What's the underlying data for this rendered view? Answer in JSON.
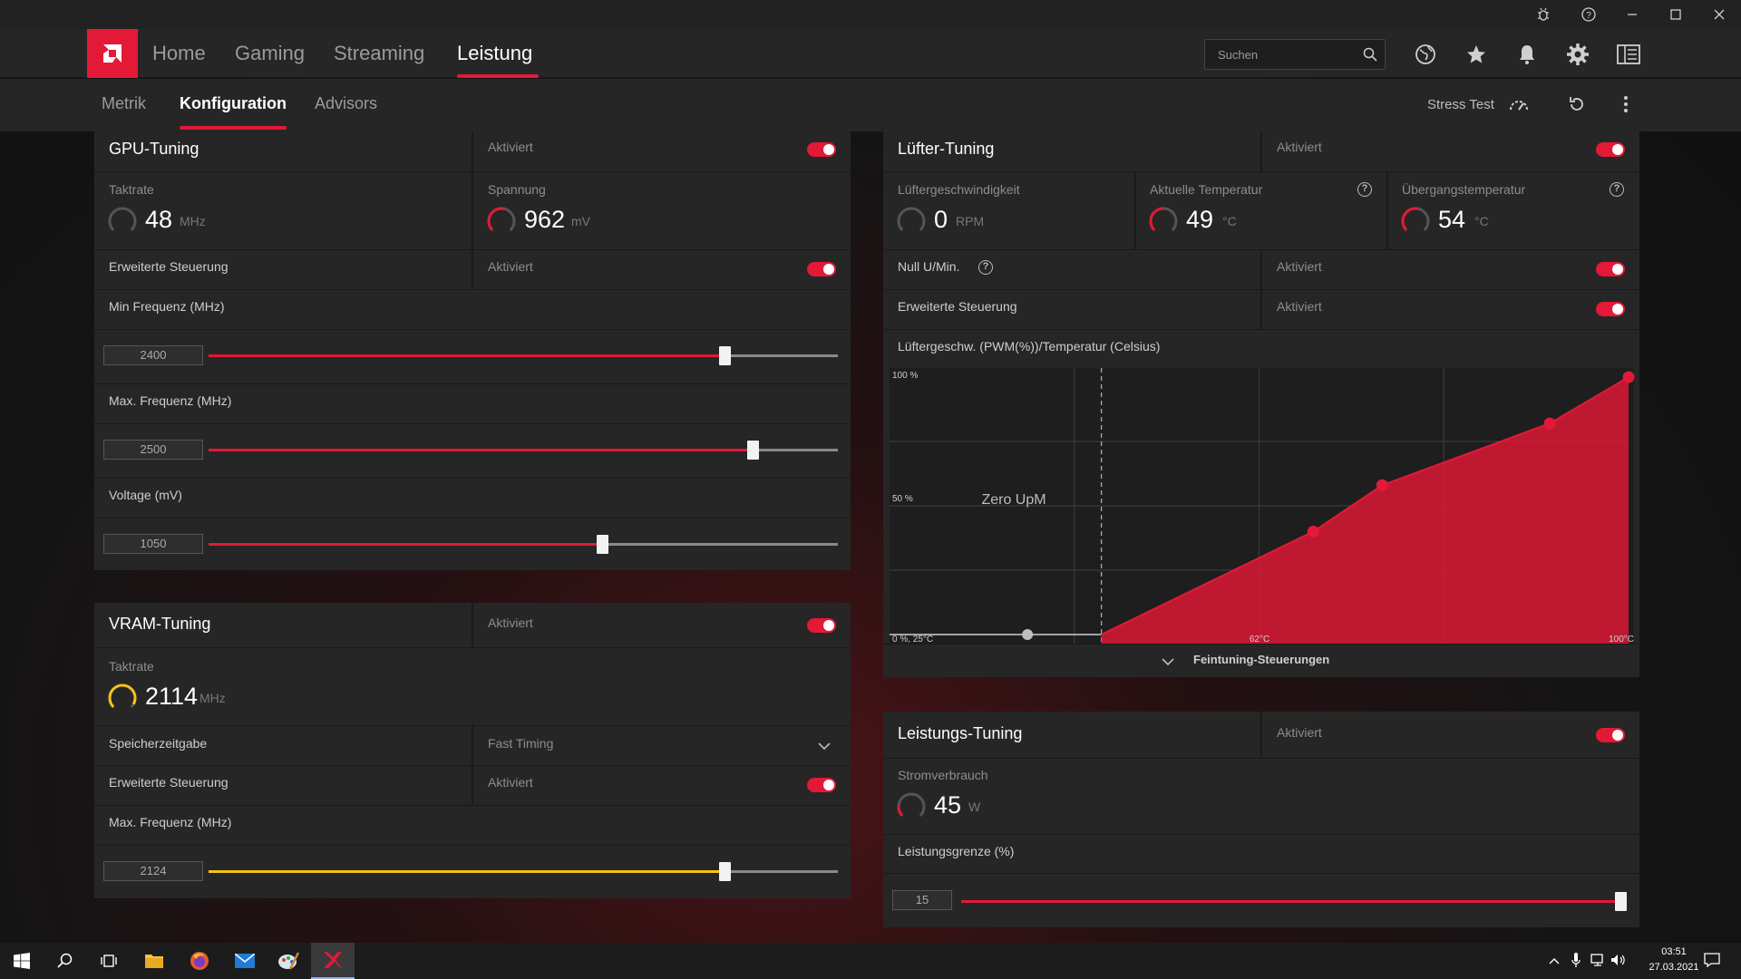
{
  "colors": {
    "accent": "#e31937",
    "vram_accent": "#f5c21b",
    "panel": "#262626"
  },
  "window": {
    "icons": [
      "bug-icon",
      "help-icon",
      "minimize-icon",
      "maximize-icon",
      "close-icon"
    ]
  },
  "nav": {
    "tabs": [
      "Home",
      "Gaming",
      "Streaming",
      "Leistung"
    ],
    "active": "Leistung",
    "search_placeholder": "Suchen",
    "icons": [
      "globe-icon",
      "star-icon",
      "bell-icon",
      "gear-icon",
      "layout-icon"
    ]
  },
  "subnav": {
    "tabs": [
      "Metrik",
      "Konfiguration",
      "Advisors"
    ],
    "active": "Konfiguration",
    "stress_test": "Stress Test"
  },
  "gpu": {
    "title": "GPU-Tuning",
    "status": "Aktiviert",
    "clock": {
      "label": "Taktrate",
      "value": "48",
      "unit": "MHz"
    },
    "voltage": {
      "label": "Spannung",
      "value": "962",
      "unit": "mV"
    },
    "advanced": {
      "label": "Erweiterte Steuerung",
      "status": "Aktiviert"
    },
    "min_freq": {
      "label": "Min Frequenz (MHz)",
      "value": "2400",
      "fraction": 0.82
    },
    "max_freq": {
      "label": "Max. Frequenz (MHz)",
      "value": "2500",
      "fraction": 0.865
    },
    "volt": {
      "label": "Voltage (mV)",
      "value": "1050",
      "fraction": 0.625
    }
  },
  "vram": {
    "title": "VRAM-Tuning",
    "status": "Aktiviert",
    "clock": {
      "label": "Taktrate",
      "value": "2114",
      "unit": "MHz"
    },
    "timing": {
      "label": "Speicherzeitgabe",
      "value": "Fast Timing"
    },
    "advanced": {
      "label": "Erweiterte Steuerung",
      "status": "Aktiviert"
    },
    "max_freq": {
      "label": "Max. Frequenz (MHz)",
      "value": "2124",
      "fraction": 0.82
    }
  },
  "fan": {
    "title": "Lüfter-Tuning",
    "status": "Aktiviert",
    "speed": {
      "label": "Lüftergeschwindigkeit",
      "value": "0",
      "unit": "RPM"
    },
    "temp": {
      "label": "Aktuelle Temperatur",
      "value": "49",
      "unit": "°C"
    },
    "junction": {
      "label": "Übergangstemperatur",
      "value": "54",
      "unit": "°C"
    },
    "zero_rpm": {
      "label": "Null U/Min.",
      "status": "Aktiviert"
    },
    "advanced": {
      "label": "Erweiterte Steuerung",
      "status": "Aktiviert"
    },
    "curve_label": "Lüftergeschw. (PWM(%))/Temperatur (Celsius)",
    "fine_tuning": "Feintuning-Steuerungen"
  },
  "chart_data": {
    "type": "area",
    "title": "Lüftergeschw. (PWM(%))/Temperatur (Celsius)",
    "x_ticks": [
      "0 %, 25°C",
      "62°C",
      "100°C"
    ],
    "y_ticks": [
      "100 %",
      "50 %"
    ],
    "annotation": "Zero UpM",
    "zero_rpm_limit_c": 46.5,
    "xlim": [
      25,
      100
    ],
    "ylim": [
      0,
      100
    ],
    "points": [
      {
        "x": 39,
        "y": 0
      },
      {
        "x": 68,
        "y": 40
      },
      {
        "x": 75,
        "y": 58
      },
      {
        "x": 92,
        "y": 82
      },
      {
        "x": 100,
        "y": 100
      }
    ]
  },
  "power": {
    "title": "Leistungs-Tuning",
    "status": "Aktiviert",
    "consumption": {
      "label": "Stromverbrauch",
      "value": "45",
      "unit": "W"
    },
    "limit": {
      "label": "Leistungsgrenze (%)",
      "value": "15",
      "fraction": 1.0
    }
  },
  "taskbar": {
    "time": "03:51",
    "date": "27.03.2021",
    "apps": [
      "windows-start-icon",
      "search-icon",
      "task-view-icon",
      "file-explorer-icon",
      "firefox-icon",
      "mail-icon",
      "paint-icon",
      "amd-radeon-icon"
    ]
  }
}
